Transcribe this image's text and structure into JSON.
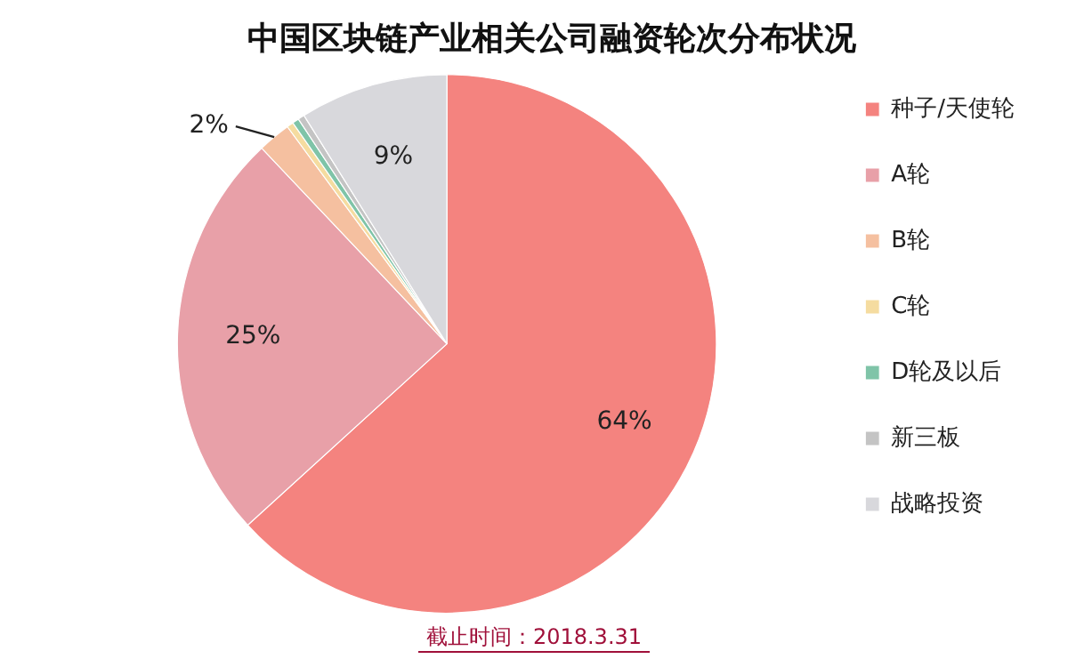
{
  "chart_data": {
    "type": "pie",
    "title": "中国区块链产业相关公司融资轮次分布状况",
    "categories": [
      "种子/天使轮",
      "A轮",
      "B轮",
      "C轮",
      "D轮及以后",
      "新三板",
      "战略投资"
    ],
    "values": [
      64,
      25,
      2,
      0.4,
      0.4,
      0.4,
      9
    ],
    "colors": [
      "#f4837f",
      "#e8a0a8",
      "#f5c0a0",
      "#f5dca0",
      "#7fc4a8",
      "#c4c4c4",
      "#d8d8dc"
    ],
    "value_labels": [
      "64%",
      "25%",
      "2%",
      null,
      null,
      null,
      "9%"
    ],
    "legend": "right",
    "annotations": [
      "截止时间：2018.3.31"
    ]
  }
}
